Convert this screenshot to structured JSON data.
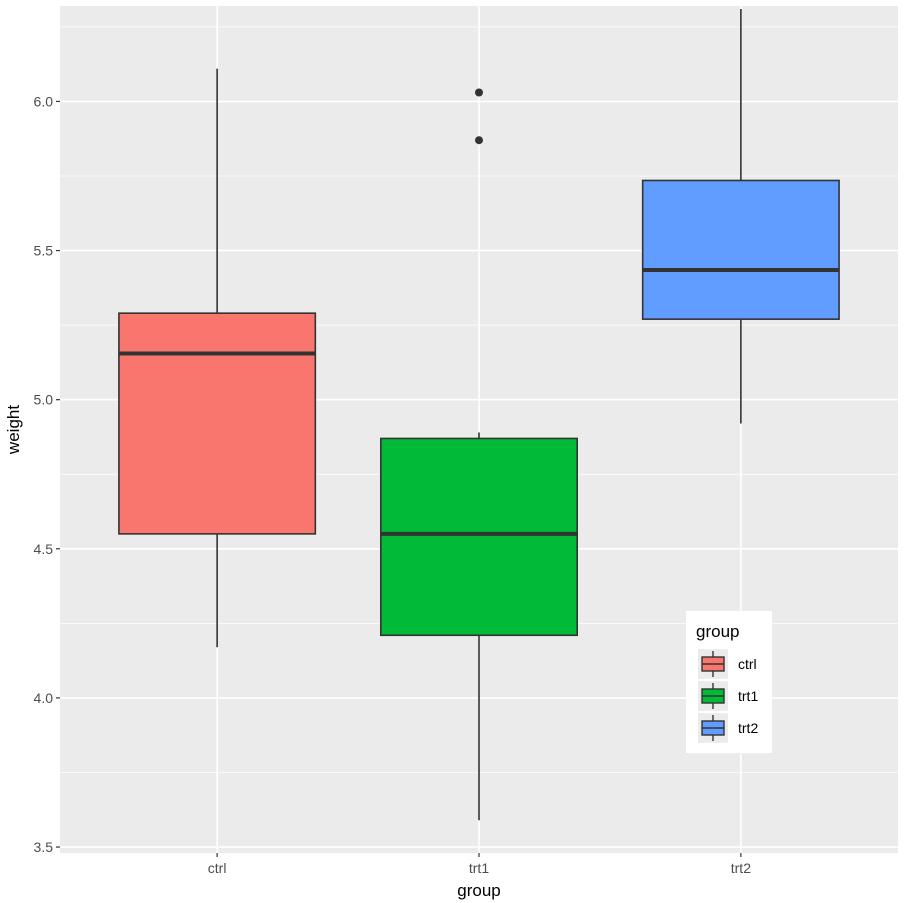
{
  "chart_data": {
    "type": "boxplot",
    "title": "",
    "xlabel": "group",
    "ylabel": "weight",
    "categories": [
      "ctrl",
      "trt1",
      "trt2"
    ],
    "ylim": [
      3.48,
      6.32
    ],
    "y_ticks": [
      3.5,
      4.0,
      4.5,
      5.0,
      5.5,
      6.0
    ],
    "y_tick_labels": [
      "3.5",
      "4.0",
      "4.5",
      "5.0",
      "5.5",
      "6.0"
    ],
    "grid": true,
    "legend": {
      "title": "group",
      "position": "bottom-right inside",
      "entries": [
        "ctrl",
        "trt1",
        "trt2"
      ]
    },
    "colors": {
      "ctrl": "#F8766D",
      "trt1": "#00BA38",
      "trt2": "#619CFF",
      "panel": "#EBEBEB",
      "grid": "#FFFFFF",
      "box_outline": "#333333"
    },
    "boxes": [
      {
        "group": "ctrl",
        "whisker_low": 4.17,
        "q1": 4.55,
        "median": 5.155,
        "q3": 5.29,
        "whisker_high": 6.11,
        "outliers": []
      },
      {
        "group": "trt1",
        "whisker_low": 3.59,
        "q1": 4.21,
        "median": 4.55,
        "q3": 4.87,
        "whisker_high": 4.89,
        "outliers": [
          5.87,
          6.03
        ]
      },
      {
        "group": "trt2",
        "whisker_low": 4.92,
        "q1": 5.27,
        "median": 5.435,
        "q3": 5.735,
        "whisker_high": 6.31,
        "outliers": []
      }
    ]
  }
}
